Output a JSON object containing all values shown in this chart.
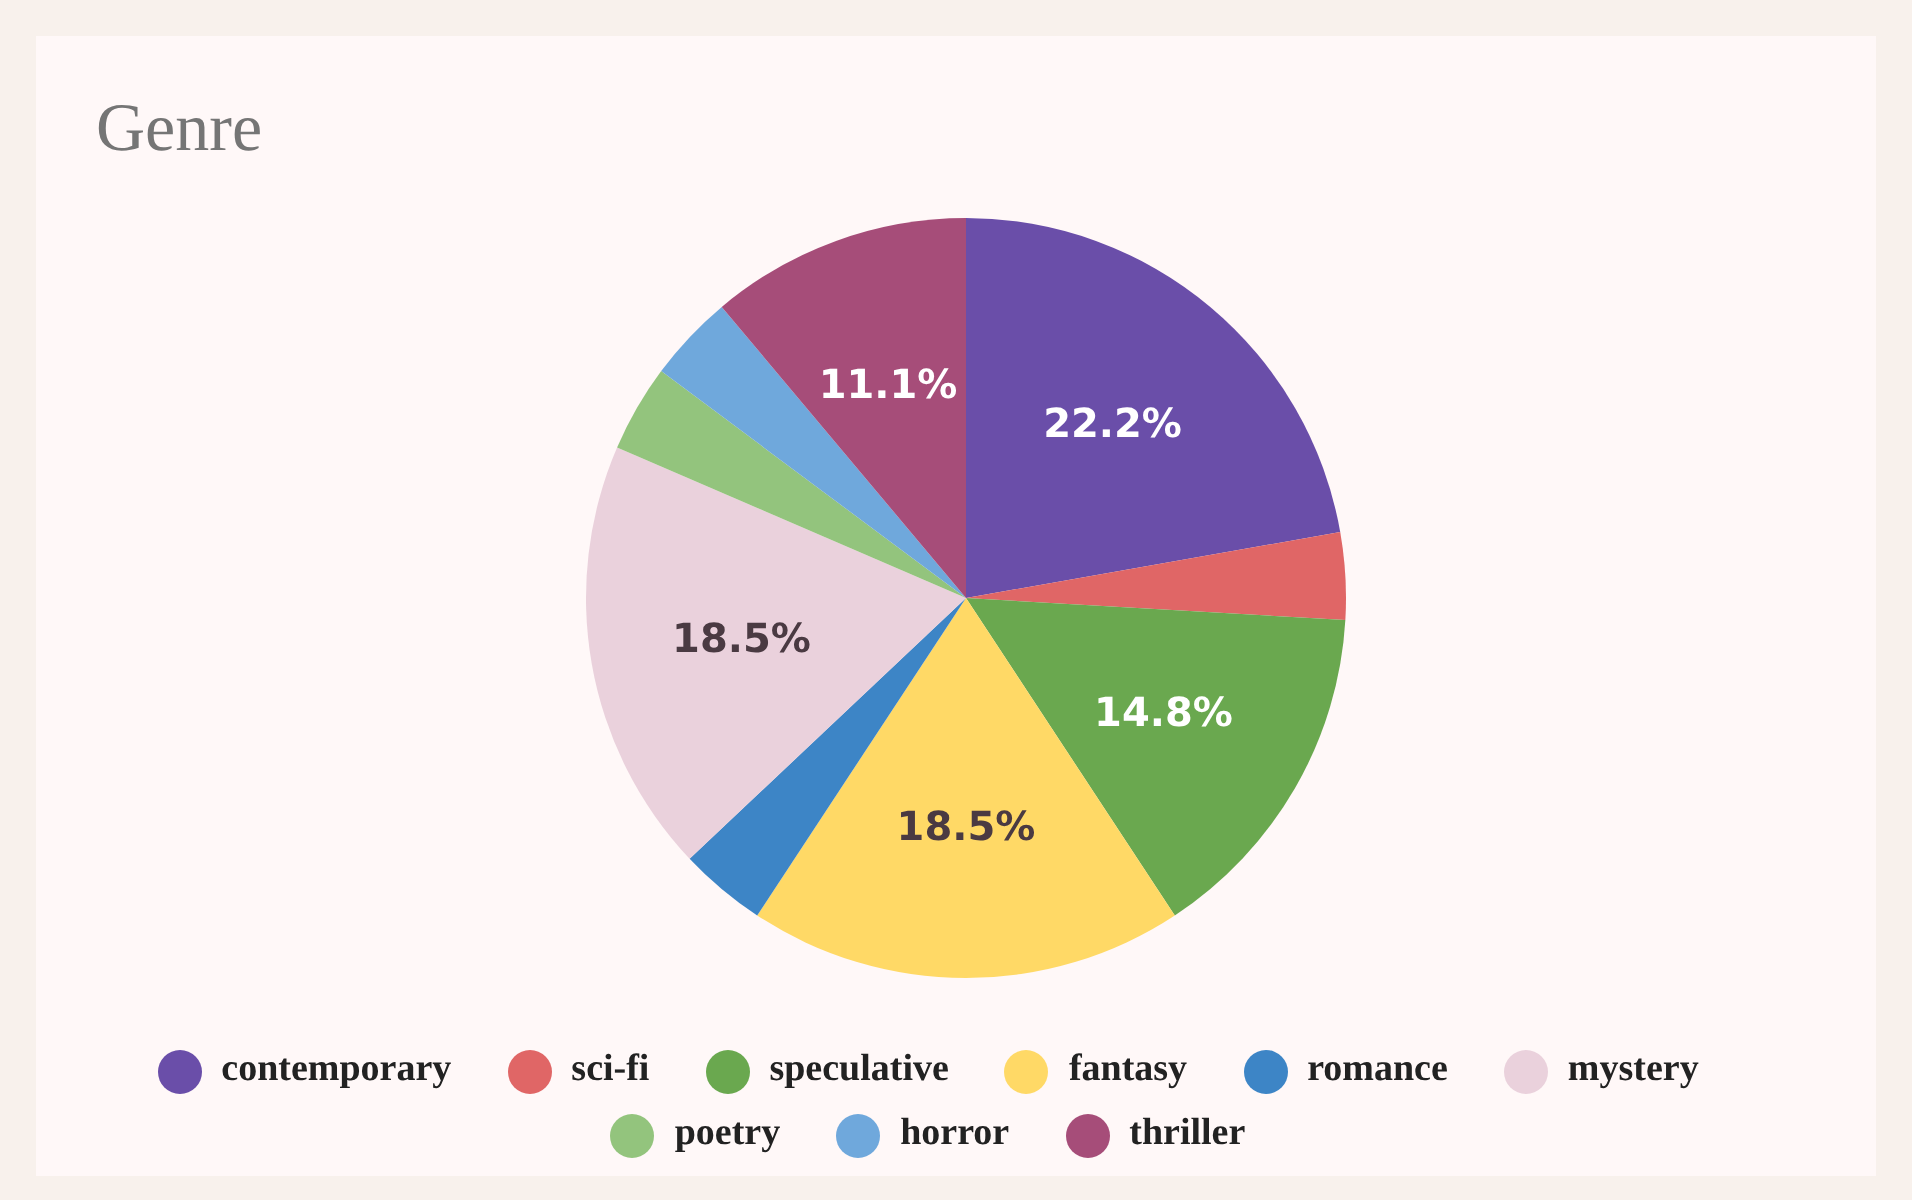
{
  "chart_data": {
    "type": "pie",
    "title": "Genre",
    "categories": [
      "contemporary",
      "sci-fi",
      "speculative",
      "fantasy",
      "romance",
      "mystery",
      "poetry",
      "horror",
      "thriller"
    ],
    "values": [
      22.2,
      3.7,
      14.8,
      18.5,
      3.7,
      18.5,
      3.7,
      3.7,
      11.1
    ],
    "colors": [
      "#6a4ea9",
      "#e06666",
      "#6aa84f",
      "#ffd966",
      "#3d85c6",
      "#ead1dc",
      "#93c47d",
      "#6fa8dc",
      "#a64d79"
    ],
    "value_labels": [
      "22.2%",
      null,
      "14.8%",
      "18.5%",
      null,
      "18.5%",
      null,
      null,
      "11.1%"
    ],
    "legend": "bottom"
  }
}
